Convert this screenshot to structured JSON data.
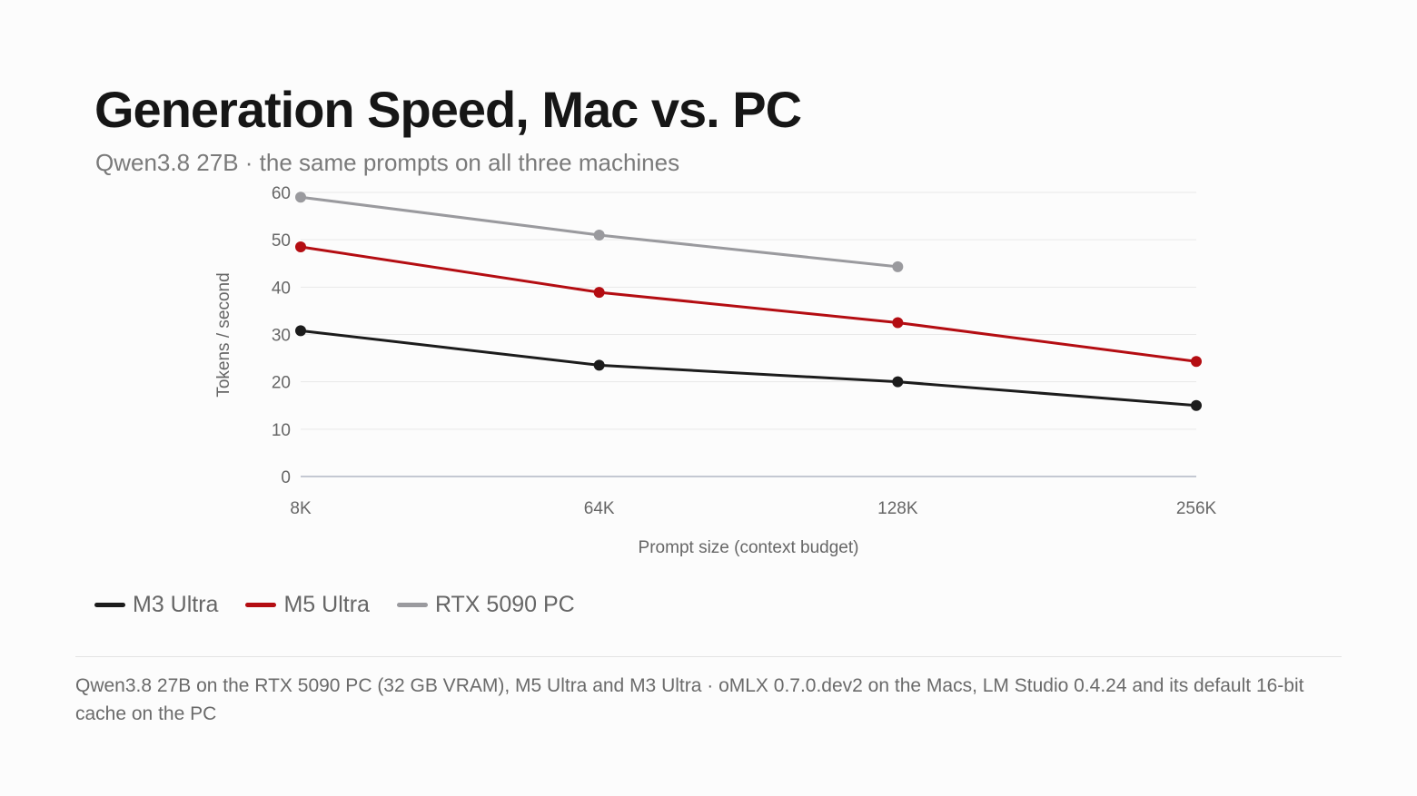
{
  "title": "Generation Speed, Mac vs. PC",
  "subtitle": "Qwen3.8 27B · the same prompts on all three machines",
  "footnote": "Qwen3.8 27B on the RTX 5090 PC (32 GB VRAM), M5 Ultra and M3 Ultra · oMLX 0.7.0.dev2 on the Macs, LM Studio 0.4.24 and its default 16-bit cache on the PC",
  "colors": {
    "m3": "#1c1c1c",
    "m5": "#b40d12",
    "rtx": "#9a9a9e",
    "grid": "#e8e8e8",
    "axis": "#c4c8d2"
  },
  "chart_data": {
    "type": "line",
    "categories": [
      "8K",
      "64K",
      "128K",
      "256K"
    ],
    "xlabel": "Prompt size (context budget)",
    "ylabel": "Tokens / second",
    "ylim": [
      0,
      60
    ],
    "yticks": [
      0,
      10,
      20,
      30,
      40,
      50,
      60
    ],
    "grid": true,
    "legend_position": "bottom-left",
    "series": [
      {
        "name": "M3 Ultra",
        "color": "#1c1c1c",
        "values": [
          30.8,
          23.5,
          20.0,
          15.0
        ]
      },
      {
        "name": "M5 Ultra",
        "color": "#b40d12",
        "values": [
          48.5,
          38.9,
          32.5,
          24.3
        ]
      },
      {
        "name": "RTX 5090 PC",
        "color": "#9a9a9e",
        "values": [
          59.0,
          51.0,
          44.3,
          null
        ]
      }
    ]
  }
}
